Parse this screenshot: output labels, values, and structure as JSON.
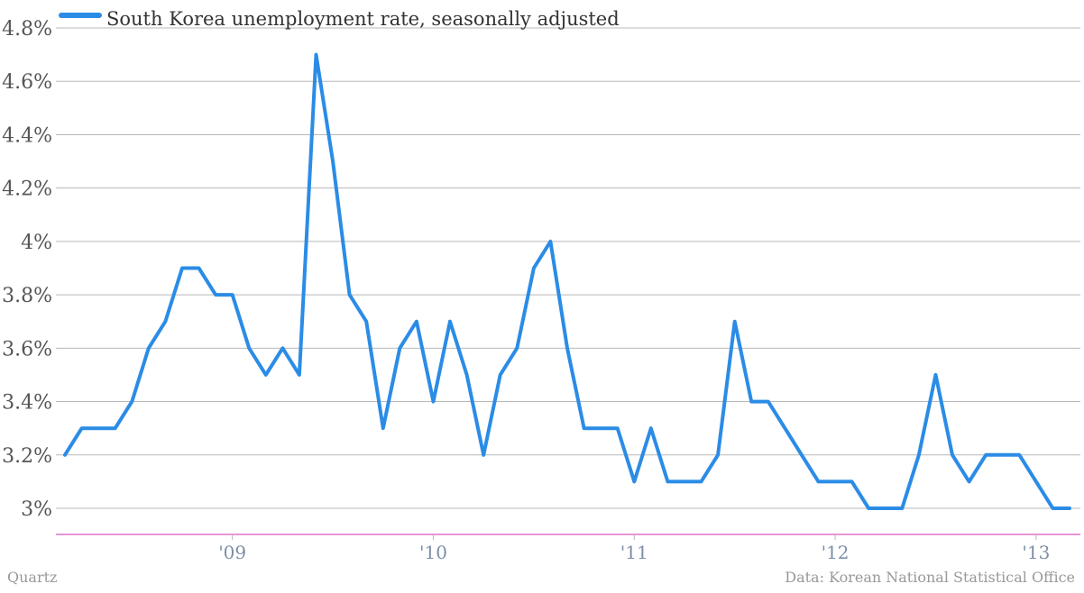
{
  "chart_data": {
    "type": "line",
    "title": "",
    "xlabel": "",
    "ylabel": "",
    "ylim": [
      2.9,
      4.8
    ],
    "y_ticks": [
      {
        "value": 3.0,
        "label": "3%"
      },
      {
        "value": 3.2,
        "label": "3.2%"
      },
      {
        "value": 3.4,
        "label": "3.4%"
      },
      {
        "value": 3.6,
        "label": "3.6%"
      },
      {
        "value": 3.8,
        "label": "3.8%"
      },
      {
        "value": 4.0,
        "label": "4%"
      },
      {
        "value": 4.2,
        "label": "4.2%"
      },
      {
        "value": 4.4,
        "label": "4.4%"
      },
      {
        "value": 4.6,
        "label": "4.6%"
      },
      {
        "value": 4.8,
        "label": "4.8%"
      }
    ],
    "x_ticks": [
      {
        "value": "2009-01",
        "label": "'09"
      },
      {
        "value": "2010-01",
        "label": "'10"
      },
      {
        "value": "2011-01",
        "label": "'11"
      },
      {
        "value": "2012-01",
        "label": "'12"
      },
      {
        "value": "2013-01",
        "label": "'13"
      }
    ],
    "grid": true,
    "legend_position": "top-left",
    "series": [
      {
        "name": "South Korea unemployment rate, seasonally adjusted",
        "color": "#2b8ce6",
        "x": [
          "2008-03",
          "2008-04",
          "2008-05",
          "2008-06",
          "2008-07",
          "2008-08",
          "2008-09",
          "2008-10",
          "2008-11",
          "2008-12",
          "2009-01",
          "2009-02",
          "2009-03",
          "2009-04",
          "2009-05",
          "2009-06",
          "2009-07",
          "2009-08",
          "2009-09",
          "2009-10",
          "2009-11",
          "2009-12",
          "2010-01",
          "2010-02",
          "2010-03",
          "2010-04",
          "2010-05",
          "2010-06",
          "2010-07",
          "2010-08",
          "2010-09",
          "2010-10",
          "2010-11",
          "2010-12",
          "2011-01",
          "2011-02",
          "2011-03",
          "2011-04",
          "2011-05",
          "2011-06",
          "2011-07",
          "2011-08",
          "2011-09",
          "2011-10",
          "2011-11",
          "2011-12",
          "2012-01",
          "2012-02",
          "2012-03",
          "2012-04",
          "2012-05",
          "2012-06",
          "2012-07",
          "2012-08",
          "2012-09",
          "2012-10",
          "2012-11",
          "2012-12",
          "2013-01",
          "2013-02",
          "2013-03"
        ],
        "values": [
          3.2,
          3.3,
          3.3,
          3.3,
          3.4,
          3.6,
          3.7,
          3.9,
          3.9,
          3.8,
          3.8,
          3.6,
          3.5,
          3.6,
          3.5,
          4.7,
          4.3,
          3.8,
          3.7,
          3.3,
          3.6,
          3.7,
          3.4,
          3.7,
          3.5,
          3.2,
          3.5,
          3.6,
          3.9,
          4.0,
          3.6,
          3.3,
          3.3,
          3.3,
          3.1,
          3.3,
          3.1,
          3.1,
          3.1,
          3.2,
          3.7,
          3.4,
          3.4,
          3.3,
          3.2,
          3.1,
          3.1,
          3.1,
          3.0,
          3.0,
          3.0,
          3.2,
          3.5,
          3.2,
          3.1,
          3.2,
          3.2,
          3.2,
          3.1,
          3.0,
          3.0
        ]
      }
    ]
  },
  "footer": {
    "source_left": "Quartz",
    "source_right": "Data: Korean National Statistical Office"
  }
}
